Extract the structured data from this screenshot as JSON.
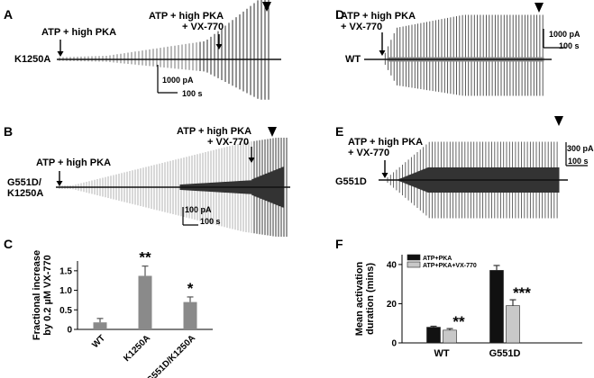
{
  "panels": {
    "A": {
      "letter": "A",
      "label": "K1250A",
      "ann1": "ATP + high PKA",
      "ann2a": "ATP + high PKA",
      "ann2b": "+ VX-770",
      "scale_y": "1000 pA",
      "scale_x": "100 s"
    },
    "B": {
      "letter": "B",
      "label1": "G551D/",
      "label2": "K1250A",
      "ann1": "ATP + high PKA",
      "ann2a": "ATP + high PKA",
      "ann2b": "+ VX-770",
      "scale_y": "100 pA",
      "scale_x": "100 s"
    },
    "D": {
      "letter": "D",
      "label": "WT",
      "ann1a": "ATP + high PKA",
      "ann1b": "+ VX-770",
      "scale_y": "1000 pA",
      "scale_x": "100 s"
    },
    "E": {
      "letter": "E",
      "label": "G551D",
      "ann1a": "ATP + high PKA",
      "ann1b": "+ VX-770",
      "scale_y": "300 pA",
      "scale_x": "100 s"
    },
    "C": {
      "letter": "C"
    },
    "F": {
      "letter": "F"
    }
  },
  "chart_data": [
    {
      "panel": "C",
      "type": "bar",
      "ylabel_line1": "Fractional increase",
      "ylabel_line2": "by 0.2 µM VX-770",
      "categories": [
        "WT",
        "K1250A",
        "G551D/K1250A"
      ],
      "values": [
        0.18,
        1.37,
        0.7
      ],
      "errors": [
        0.1,
        0.25,
        0.13
      ],
      "significance": [
        "",
        "**",
        "*"
      ],
      "ylim": [
        0,
        1.75
      ],
      "yticks": [
        "0",
        "0.5",
        "1.0",
        "1.5"
      ],
      "ytick_values": [
        0,
        0.5,
        1.0,
        1.5
      ],
      "bar_color": "#8a8a8a"
    },
    {
      "panel": "F",
      "type": "bar",
      "ylabel_line1": "Mean activation",
      "ylabel_line2": "duration (mins)",
      "categories": [
        "WT",
        "G551D"
      ],
      "series": [
        {
          "name": "ATP+PKA",
          "values": [
            8,
            37
          ],
          "errors": [
            0.5,
            2.5
          ],
          "color": "#111111"
        },
        {
          "name": "ATP+PKA+VX-770",
          "values": [
            6.5,
            19
          ],
          "errors": [
            0.8,
            3
          ],
          "color": "#c8c8c8"
        }
      ],
      "significance": [
        "**",
        "***"
      ],
      "ylim": [
        0,
        45
      ],
      "yticks": [
        "0",
        "20",
        "40"
      ],
      "ytick_values": [
        0,
        20,
        40
      ]
    }
  ]
}
